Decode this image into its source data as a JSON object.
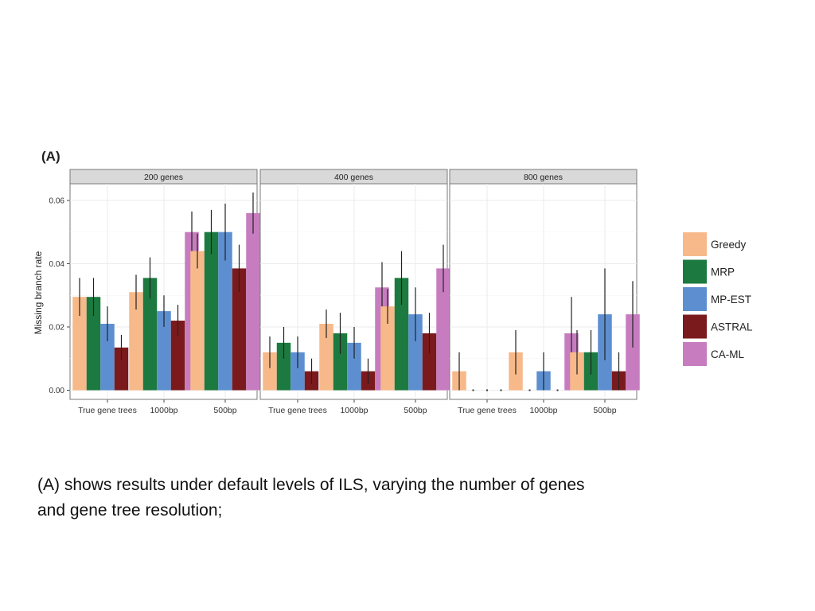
{
  "panel_label": "(A)",
  "caption": {
    "line1": "(A) shows results under default levels of ILS, varying the number of genes",
    "line2": "and gene tree resolution;"
  },
  "colors": {
    "Greedy": "#f7b989",
    "MRP": "#1c7a40",
    "MP-EST": "#5d8fd0",
    "ASTRAL": "#7b1a1c",
    "CA-ML": "#c77cc0",
    "strip": "#d9d9d9",
    "grid": "#ebebeb"
  },
  "chart_data": {
    "type": "bar",
    "ylabel": "Missing branch rate",
    "xlabel": "",
    "ylim": [
      0,
      0.065
    ],
    "yticks": [
      "0.00",
      "0.02",
      "0.04",
      "0.06"
    ],
    "ytick_values": [
      0,
      0.02,
      0.04,
      0.06
    ],
    "categories": [
      "True gene trees",
      "1000bp",
      "500bp"
    ],
    "legend": [
      "Greedy",
      "MRP",
      "MP-EST",
      "ASTRAL",
      "CA-ML"
    ],
    "legend_position": "right",
    "grid": true,
    "panels": [
      {
        "title": "200 genes",
        "series": [
          {
            "name": "Greedy",
            "values": [
              0.0295,
              0.031,
              0.044
            ],
            "err": [
              0.006,
              0.0055,
              0.0055
            ]
          },
          {
            "name": "MRP",
            "values": [
              0.0295,
              0.0355,
              0.05
            ],
            "err": [
              0.006,
              0.0065,
              0.007
            ]
          },
          {
            "name": "MP-EST",
            "values": [
              0.021,
              0.025,
              0.05
            ],
            "err": [
              0.0055,
              0.005,
              0.009
            ]
          },
          {
            "name": "ASTRAL",
            "values": [
              0.0135,
              0.022,
              0.0385
            ],
            "err": [
              0.004,
              0.005,
              0.0075
            ]
          },
          {
            "name": "CA-ML",
            "values": [
              null,
              0.05,
              0.056
            ],
            "err": [
              null,
              0.0065,
              0.0065
            ]
          }
        ]
      },
      {
        "title": "400 genes",
        "series": [
          {
            "name": "Greedy",
            "values": [
              0.012,
              0.021,
              0.0265
            ],
            "err": [
              0.005,
              0.0045,
              0.0055
            ]
          },
          {
            "name": "MRP",
            "values": [
              0.015,
              0.018,
              0.0355
            ],
            "err": [
              0.005,
              0.0065,
              0.0085
            ]
          },
          {
            "name": "MP-EST",
            "values": [
              0.012,
              0.015,
              0.024
            ],
            "err": [
              0.005,
              0.005,
              0.0085
            ]
          },
          {
            "name": "ASTRAL",
            "values": [
              0.006,
              0.006,
              0.018
            ],
            "err": [
              0.004,
              0.004,
              0.0065
            ]
          },
          {
            "name": "CA-ML",
            "values": [
              null,
              0.0325,
              0.0385
            ],
            "err": [
              null,
              0.008,
              0.0075
            ]
          }
        ]
      },
      {
        "title": "800 genes",
        "series": [
          {
            "name": "Greedy",
            "values": [
              0.006,
              0.012,
              0.012
            ],
            "err": [
              0.006,
              0.007,
              0.007
            ]
          },
          {
            "name": "MRP",
            "values": [
              0,
              0,
              0.012
            ],
            "err": [
              0,
              0,
              0.007
            ]
          },
          {
            "name": "MP-EST",
            "values": [
              0,
              0.006,
              0.024
            ],
            "err": [
              0,
              0.006,
              0.0145
            ]
          },
          {
            "name": "ASTRAL",
            "values": [
              0,
              0,
              0.006
            ],
            "err": [
              0,
              0,
              0.006
            ]
          },
          {
            "name": "CA-ML",
            "values": [
              null,
              0.018,
              0.024
            ],
            "err": [
              null,
              0.0115,
              0.0105
            ]
          }
        ]
      }
    ]
  }
}
